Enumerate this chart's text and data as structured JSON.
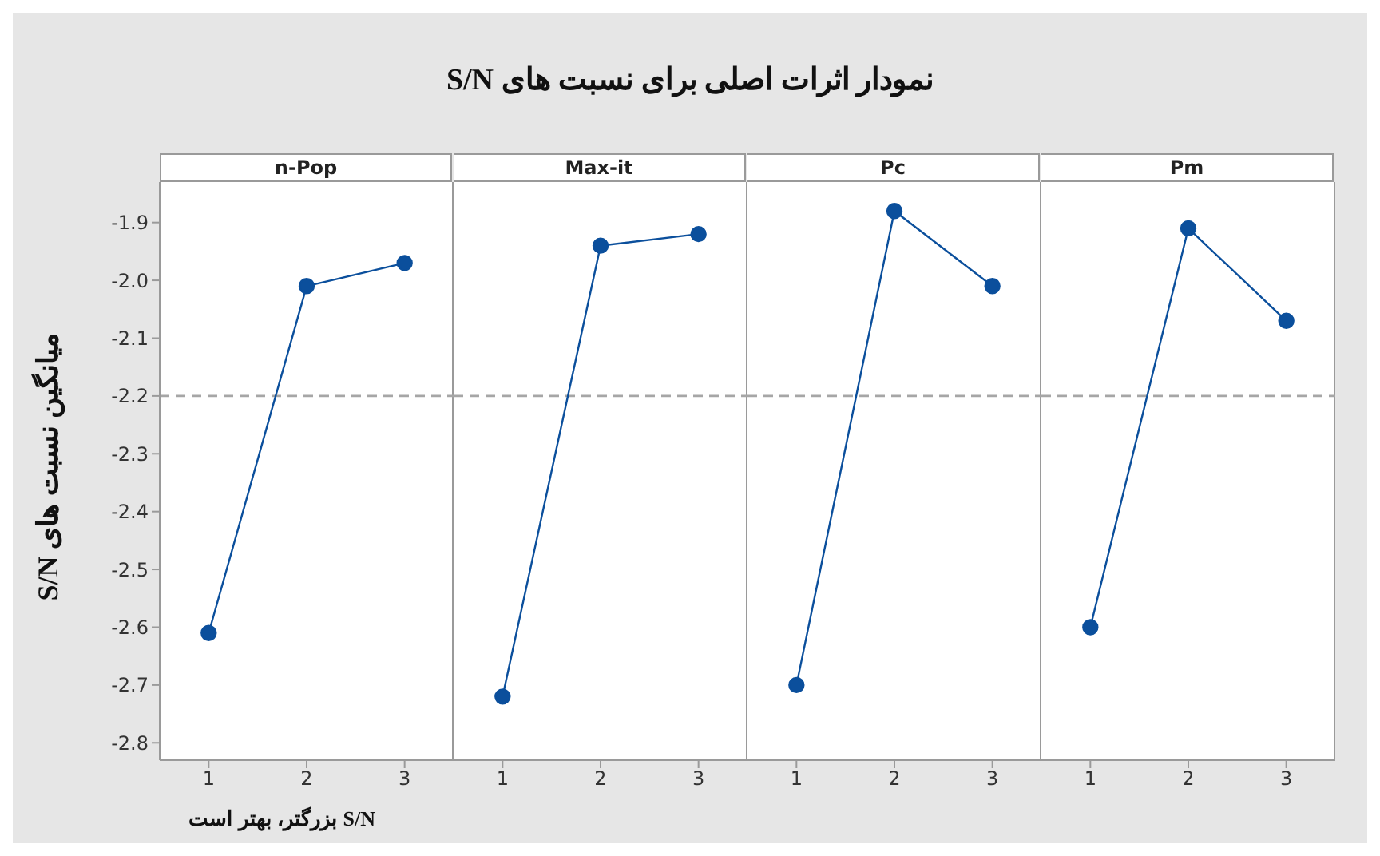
{
  "chart_data": [
    {
      "type": "line",
      "title": "n-Pop",
      "ylabel": "میانگین نسبت های S/N",
      "annotations": [
        "نمودار اثرات اصلی برای نسبت های S/N",
        "S/N بزرگتر، بهتر است"
      ],
      "categories": [
        "1",
        "2",
        "3"
      ],
      "values": [
        -2.61,
        -2.01,
        -1.97
      ],
      "color": "#0b4f9c",
      "marker": "circle",
      "ylim": [
        -2.83,
        -1.83
      ],
      "yticks": [
        -2.8,
        -2.7,
        -2.6,
        -2.5,
        -2.4,
        -2.3,
        -2.2,
        -2.1,
        {
          "value": -2,
          "label": "-2.0"
        },
        -1.9
      ],
      "ref_lines": [
        {
          "axis": "y",
          "value": -2.2,
          "color": "#a6a6a6",
          "line_style": "dashed"
        }
      ],
      "grid": false,
      "legend": false
    },
    {
      "type": "line",
      "title": "Max-it",
      "categories": [
        "1",
        "2",
        "3"
      ],
      "values": [
        -2.72,
        -1.94,
        -1.92
      ],
      "color": "#0b4f9c",
      "marker": "circle",
      "ylim": [
        -2.83,
        -1.83
      ],
      "yticks": [
        -2.8,
        -2.7,
        -2.6,
        -2.5,
        -2.4,
        -2.3,
        -2.2,
        -2.1,
        -2.0,
        -1.9
      ],
      "tick_labels": "x",
      "ref_lines": [
        {
          "axis": "y",
          "value": -2.2,
          "color": "#a6a6a6",
          "line_style": "dashed"
        }
      ],
      "grid": false,
      "legend": false
    },
    {
      "type": "line",
      "title": "Pc",
      "categories": [
        "1",
        "2",
        "3"
      ],
      "values": [
        -2.7,
        -1.88,
        -2.01
      ],
      "color": "#0b4f9c",
      "marker": "circle",
      "ylim": [
        -2.83,
        -1.83
      ],
      "yticks": [
        -2.8,
        -2.7,
        -2.6,
        -2.5,
        -2.4,
        -2.3,
        -2.2,
        -2.1,
        -2.0,
        -1.9
      ],
      "tick_labels": "x",
      "ref_lines": [
        {
          "axis": "y",
          "value": -2.2,
          "color": "#a6a6a6",
          "line_style": "dashed"
        }
      ],
      "grid": false,
      "legend": false
    },
    {
      "type": "line",
      "title": "Pm",
      "categories": [
        "1",
        "2",
        "3"
      ],
      "values": [
        -2.6,
        -1.91,
        -2.07
      ],
      "color": "#0b4f9c",
      "marker": "circle",
      "ylim": [
        -2.83,
        -1.83
      ],
      "yticks": [
        -2.8,
        -2.7,
        -2.6,
        -2.5,
        -2.4,
        -2.3,
        -2.2,
        -2.1,
        -2.0,
        -1.9
      ],
      "tick_labels": "x",
      "ref_lines": [
        {
          "axis": "y",
          "value": -2.2,
          "color": "#a6a6a6",
          "line_style": "dashed"
        }
      ],
      "grid": false,
      "legend": false
    }
  ]
}
